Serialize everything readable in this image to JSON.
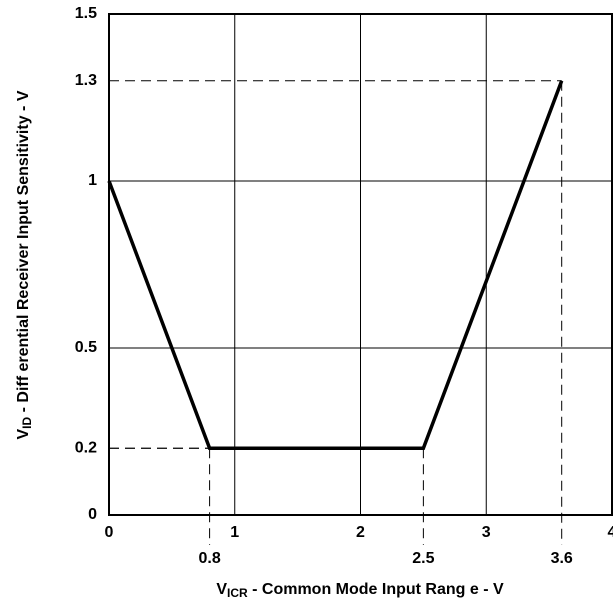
{
  "chart_data": {
    "type": "line",
    "x_label": {
      "main": "V",
      "sub": "ICR",
      "rest": " - Common Mode Input Rang e -  V"
    },
    "y_label": {
      "main": "V",
      "sub": "ID",
      "rest": "   - Diff erential Receiver Input Sensitivity - V"
    },
    "x": [
      0,
      0.8,
      2.5,
      3.6
    ],
    "series": [
      {
        "color": "#000000",
        "values": [
          1,
          0.2,
          0.2,
          1.3
        ]
      }
    ],
    "xlim": [
      0,
      4
    ],
    "ylim": [
      0,
      1.5
    ],
    "xticks": [
      0,
      1,
      2,
      3,
      4
    ],
    "xticks_marked": [
      0.8,
      2.5,
      3.6
    ],
    "yticks": [
      0,
      0.5,
      1,
      1.5
    ],
    "yticks_marked": [
      0.2,
      1.3
    ],
    "grid": true
  }
}
